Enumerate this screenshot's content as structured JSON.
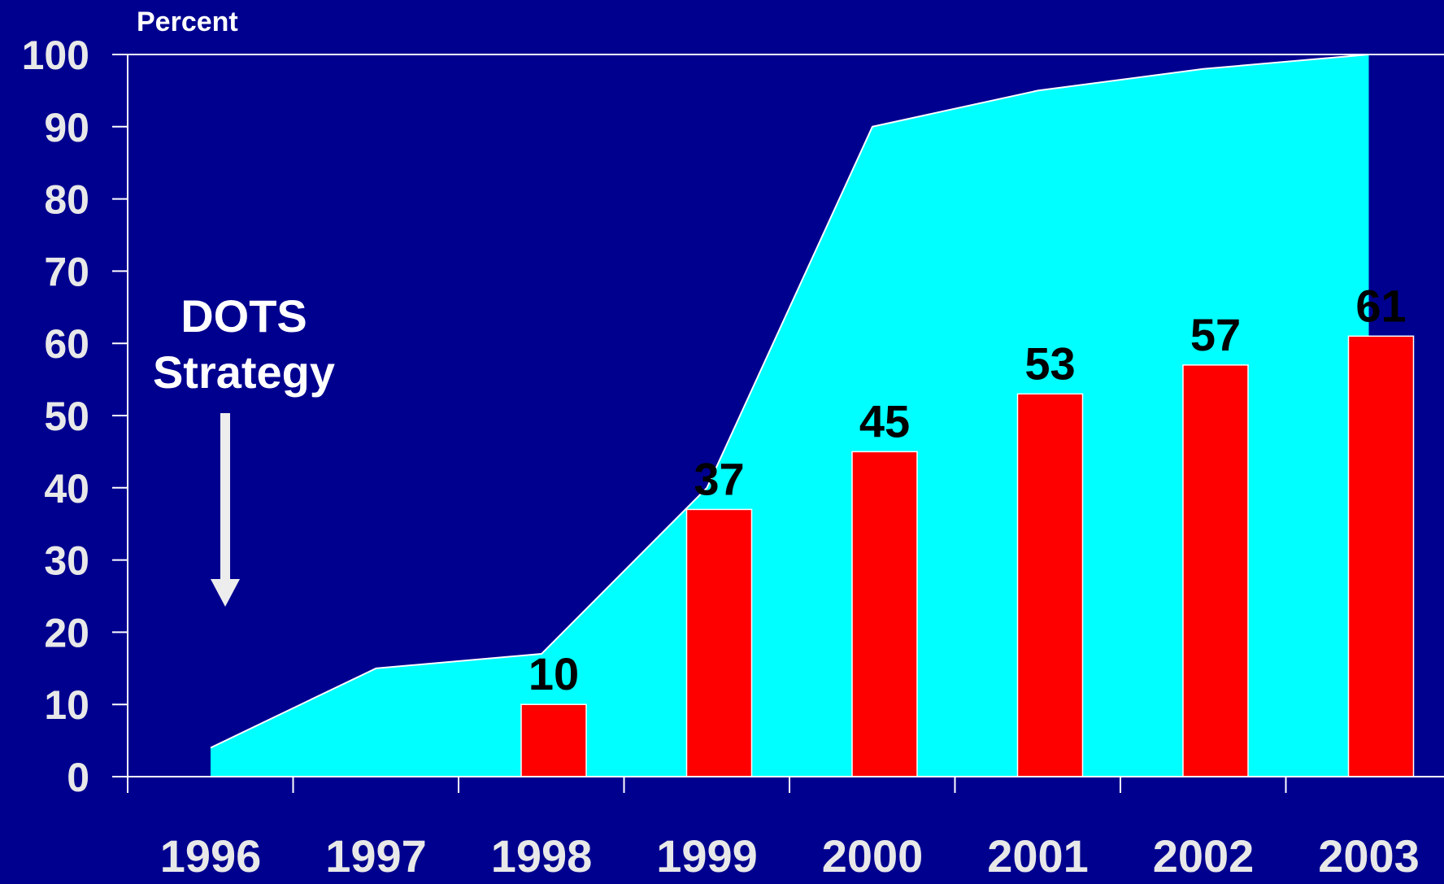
{
  "chart_data": {
    "type": "bar",
    "ylabel": "Percent",
    "ylim": [
      0,
      100
    ],
    "yticks": [
      0,
      10,
      20,
      30,
      40,
      50,
      60,
      70,
      80,
      90,
      100
    ],
    "categories": [
      "1996",
      "1997",
      "1998",
      "1999",
      "2000",
      "2001",
      "2002",
      "2003"
    ],
    "series": [
      {
        "type": "area",
        "color": "#00FFFF",
        "values": [
          4,
          15,
          17,
          40,
          90,
          95,
          98,
          100
        ]
      },
      {
        "type": "bar",
        "color": "#FF0000",
        "values": [
          null,
          null,
          10,
          37,
          45,
          53,
          57,
          61
        ],
        "data_labels": [
          "",
          "",
          "10",
          "37",
          "45",
          "53",
          "57",
          "61"
        ]
      }
    ],
    "annotation": {
      "line1": "DOTS",
      "line2": "Strategy",
      "arrow_at": "1996"
    },
    "colors": {
      "background": "#00008F",
      "axis": "#FFFFFF",
      "tick_text": "#E8E8E8"
    }
  }
}
